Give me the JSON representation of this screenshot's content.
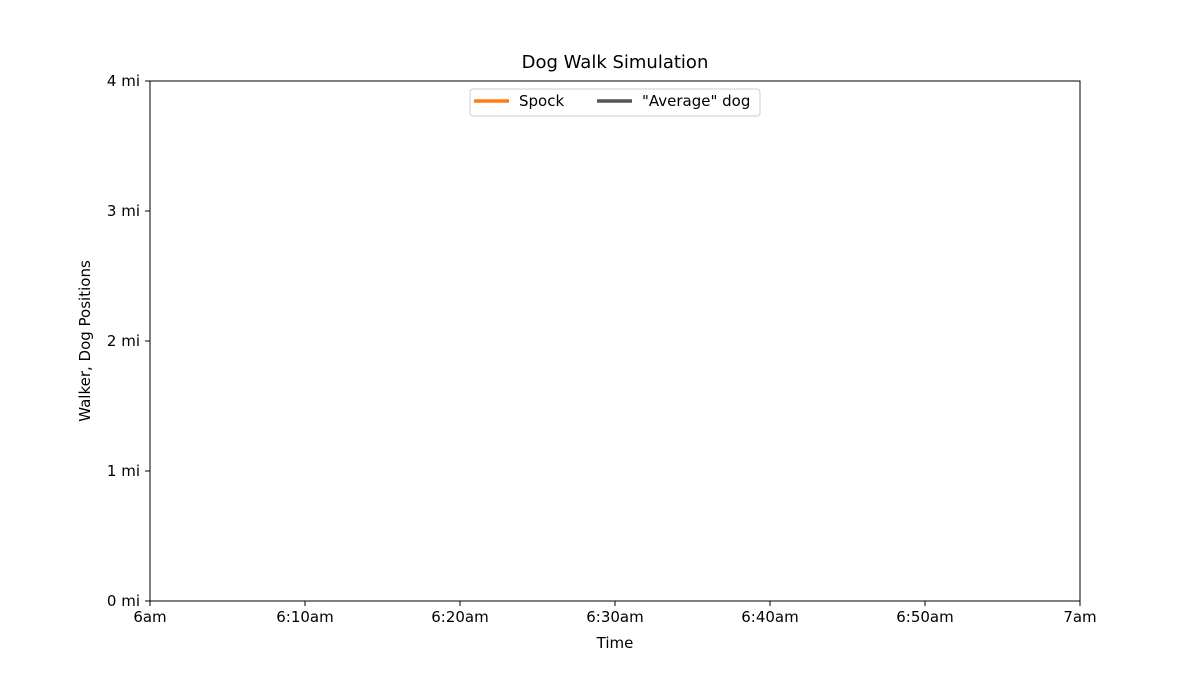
{
  "chart_data": {
    "type": "line",
    "title": "Dog Walk Simulation",
    "xlabel": "Time",
    "ylabel": "Walker, Dog Positions",
    "x_tick_labels": [
      "6am",
      "6:10am",
      "6:20am",
      "6:30am",
      "6:40am",
      "6:50am",
      "7am"
    ],
    "x_ticks": [
      "06:00",
      "06:10",
      "06:20",
      "06:30",
      "06:40",
      "06:50",
      "07:00"
    ],
    "xlim": [
      "06:00",
      "07:00"
    ],
    "y_tick_labels": [
      "0 mi",
      "1 mi",
      "2 mi",
      "3 mi",
      "4 mi"
    ],
    "y_ticks": [
      0,
      1,
      2,
      3,
      4
    ],
    "ylim": [
      0,
      4
    ],
    "grid": false,
    "legend": {
      "placement": "upper-center",
      "columns": 2
    },
    "series": [
      {
        "name": "Spock",
        "color": "#ff7f0e",
        "x": [],
        "y": []
      },
      {
        "name": "\"Average\" dog",
        "color": "#555555",
        "x": [],
        "y": []
      }
    ]
  }
}
